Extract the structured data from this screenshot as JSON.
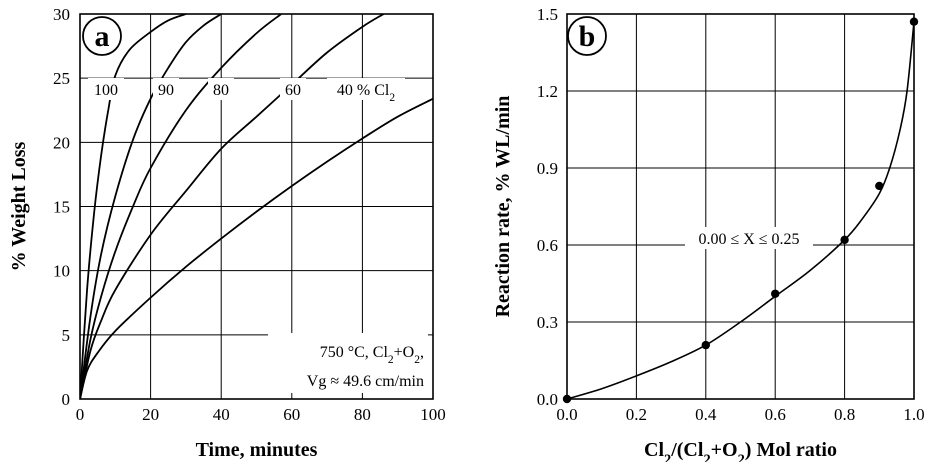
{
  "chart_data": [
    {
      "panel": "a",
      "type": "line",
      "xlabel": "Time, minutes",
      "ylabel": "% Weight Loss",
      "xlim": [
        0,
        100
      ],
      "ylim": [
        0,
        30
      ],
      "xticks": [
        "0",
        "20",
        "40",
        "60",
        "80",
        "100"
      ],
      "yticks": [
        "0",
        "5",
        "10",
        "15",
        "20",
        "25",
        "30"
      ],
      "grid": true,
      "annotation_lines": [
        "750 °C, Cl2+O2,",
        "Vg ≈ 49.6 cm/min"
      ],
      "series": [
        {
          "name": "100",
          "x": [
            0,
            2,
            4,
            6,
            8,
            10,
            14,
            20,
            25,
            30
          ],
          "y": [
            0,
            8.5,
            14.5,
            19,
            22.5,
            25.2,
            27.2,
            28.6,
            29.5,
            30
          ]
        },
        {
          "name": "90",
          "x": [
            0,
            3,
            6,
            10,
            15,
            20,
            25,
            30,
            35,
            40
          ],
          "y": [
            0,
            6.5,
            11.3,
            15.8,
            20.2,
            23.4,
            25.8,
            27.8,
            29.1,
            30
          ]
        },
        {
          "name": "80",
          "x": [
            0,
            3,
            6,
            10,
            15,
            20,
            30,
            40,
            50,
            57
          ],
          "y": [
            0,
            4.7,
            8,
            11.5,
            15,
            18,
            22.5,
            25.8,
            28.5,
            30
          ]
        },
        {
          "name": "60",
          "x": [
            0,
            3,
            6,
            10,
            20,
            30,
            40,
            50,
            60,
            70,
            80,
            86
          ],
          "y": [
            0,
            3.8,
            6.1,
            8.5,
            12.8,
            16.2,
            19.5,
            22,
            24.5,
            27,
            29,
            30
          ]
        },
        {
          "name": "40 % Cl2",
          "x": [
            0,
            2,
            5,
            10,
            20,
            30,
            40,
            50,
            60,
            70,
            80,
            90,
            100
          ],
          "y": [
            0,
            2.2,
            3.6,
            5.3,
            7.9,
            10.3,
            12.5,
            14.6,
            16.6,
            18.5,
            20.3,
            22,
            23.4
          ]
        }
      ],
      "curve_labels": [
        "100",
        "90",
        "80",
        "60",
        "40 % Cl2"
      ],
      "panel_letter": "a"
    },
    {
      "panel": "b",
      "type": "scatter",
      "xlabel": "Cl2/(Cl2+O2) Mol ratio",
      "ylabel": "Reaction rate, % WL/min",
      "xlim": [
        0,
        1.0
      ],
      "ylim": [
        0,
        1.5
      ],
      "xticks": [
        "0.0",
        "0.2",
        "0.4",
        "0.6",
        "0.8",
        "1.0"
      ],
      "yticks": [
        "0.0",
        "0.3",
        "0.6",
        "0.9",
        "1.2",
        "1.5"
      ],
      "grid": true,
      "annotation": "0.00 ≤ X ≤ 0.25",
      "points": {
        "x": [
          0.0,
          0.4,
          0.6,
          0.8,
          0.9,
          1.0
        ],
        "y": [
          0.0,
          0.21,
          0.41,
          0.62,
          0.83,
          1.47
        ]
      },
      "fit_curve": {
        "x": [
          0,
          0.1,
          0.2,
          0.3,
          0.4,
          0.5,
          0.6,
          0.7,
          0.8,
          0.85,
          0.9,
          0.93,
          0.96,
          0.98,
          1.0
        ],
        "y": [
          0,
          0.04,
          0.09,
          0.145,
          0.21,
          0.3,
          0.4,
          0.5,
          0.62,
          0.7,
          0.8,
          0.9,
          1.05,
          1.2,
          1.47
        ]
      },
      "panel_letter": "b"
    }
  ]
}
